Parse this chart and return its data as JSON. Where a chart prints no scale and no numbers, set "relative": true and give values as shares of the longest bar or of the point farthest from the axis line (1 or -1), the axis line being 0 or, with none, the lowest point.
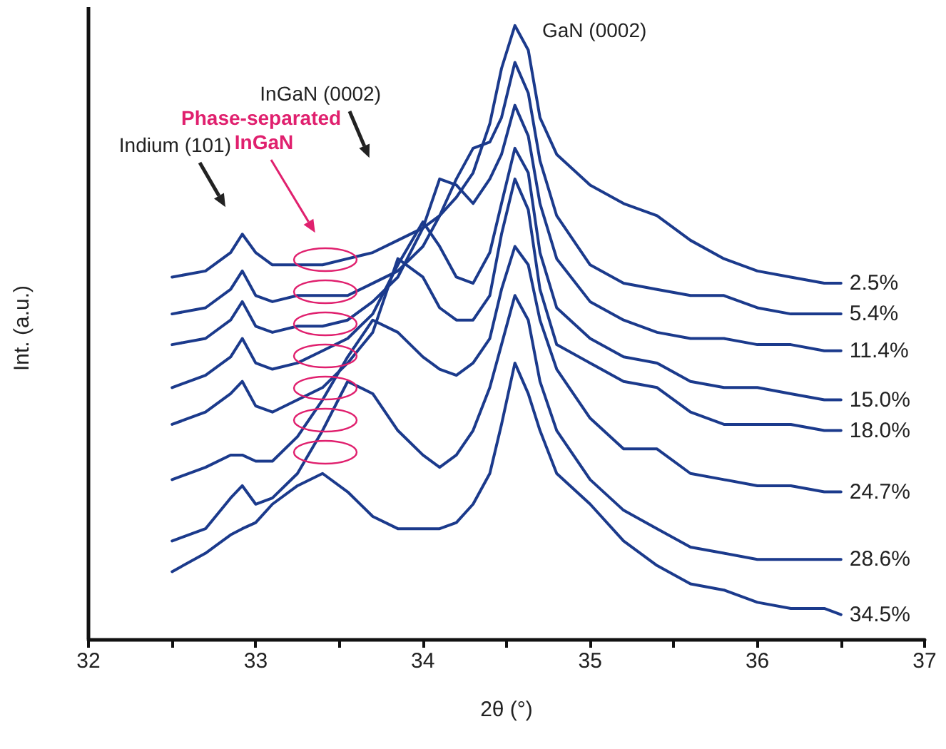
{
  "chart_data": {
    "type": "line",
    "relative": true,
    "xlabel": "2θ (°)",
    "ylabel": "Int. (a.u.)",
    "xlim": [
      32,
      37
    ],
    "xticks": [
      32,
      {
        "value": 32.5,
        "label": null
      },
      33,
      {
        "value": 33.5,
        "label": null
      },
      34,
      {
        "value": 34.5,
        "label": null
      },
      35,
      {
        "value": 35.5,
        "label": null
      },
      36,
      {
        "value": 36.5,
        "label": null
      },
      37
    ],
    "x": [
      32.5,
      32.7,
      32.85,
      32.92,
      33.0,
      33.1,
      33.25,
      33.4,
      33.55,
      33.7,
      33.85,
      34.0,
      34.1,
      34.2,
      34.3,
      34.4,
      34.47,
      34.55,
      34.63,
      34.7,
      34.8,
      35.0,
      35.2,
      35.4,
      35.6,
      35.8,
      36.0,
      36.2,
      36.4,
      36.5
    ],
    "grid": false,
    "legend": false,
    "marker": "none",
    "line_style": "solid",
    "series": [
      {
        "name": "2.5%",
        "color": "#1b3a8c",
        "values": [
          0.59,
          0.6,
          0.63,
          0.66,
          0.63,
          0.61,
          0.61,
          0.61,
          0.62,
          0.63,
          0.65,
          0.67,
          0.69,
          0.72,
          0.76,
          0.84,
          0.93,
          1,
          0.96,
          0.85,
          0.79,
          0.74,
          0.71,
          0.69,
          0.65,
          0.62,
          0.6,
          0.59,
          0.58,
          0.58
        ]
      },
      {
        "name": "5.4%",
        "color": "#1b3a8c",
        "values": [
          0.53,
          0.54,
          0.57,
          0.6,
          0.56,
          0.55,
          0.56,
          0.56,
          0.56,
          0.58,
          0.6,
          0.64,
          0.69,
          0.75,
          0.8,
          0.81,
          0.85,
          0.94,
          0.89,
          0.78,
          0.69,
          0.61,
          0.58,
          0.57,
          0.56,
          0.56,
          0.54,
          0.53,
          0.53,
          0.53
        ]
      },
      {
        "name": "11.4%",
        "color": "#1b3a8c",
        "values": [
          0.48,
          0.49,
          0.52,
          0.55,
          0.51,
          0.5,
          0.51,
          0.51,
          0.52,
          0.55,
          0.59,
          0.67,
          0.75,
          0.74,
          0.71,
          0.75,
          0.79,
          0.87,
          0.82,
          0.71,
          0.62,
          0.55,
          0.52,
          0.5,
          0.49,
          0.49,
          0.48,
          0.48,
          0.47,
          0.47
        ]
      },
      {
        "name": "15.0%",
        "color": "#1b3a8c",
        "values": [
          0.41,
          0.43,
          0.46,
          0.49,
          0.45,
          0.44,
          0.45,
          0.47,
          0.49,
          0.53,
          0.61,
          0.68,
          0.64,
          0.59,
          0.58,
          0.63,
          0.71,
          0.8,
          0.76,
          0.63,
          0.54,
          0.49,
          0.46,
          0.45,
          0.42,
          0.41,
          0.41,
          0.4,
          0.39,
          0.39
        ]
      },
      {
        "name": "18.0%",
        "color": "#1b3a8c",
        "values": [
          0.35,
          0.37,
          0.4,
          0.42,
          0.38,
          0.37,
          0.39,
          0.41,
          0.45,
          0.5,
          0.62,
          0.59,
          0.54,
          0.52,
          0.52,
          0.56,
          0.66,
          0.75,
          0.7,
          0.57,
          0.48,
          0.45,
          0.42,
          0.41,
          0.37,
          0.35,
          0.35,
          0.35,
          0.34,
          0.34
        ]
      },
      {
        "name": "24.7%",
        "color": "#1b3a8c",
        "values": [
          0.26,
          0.28,
          0.3,
          0.3,
          0.29,
          0.29,
          0.33,
          0.39,
          0.46,
          0.52,
          0.5,
          0.46,
          0.44,
          0.43,
          0.45,
          0.49,
          0.57,
          0.64,
          0.61,
          0.52,
          0.44,
          0.36,
          0.31,
          0.31,
          0.27,
          0.26,
          0.25,
          0.25,
          0.24,
          0.24
        ]
      },
      {
        "name": "28.6%",
        "color": "#1b3a8c",
        "values": [
          0.16,
          0.18,
          0.23,
          0.25,
          0.22,
          0.23,
          0.27,
          0.34,
          0.42,
          0.4,
          0.34,
          0.3,
          0.28,
          0.3,
          0.34,
          0.41,
          0.48,
          0.56,
          0.52,
          0.42,
          0.34,
          0.26,
          0.21,
          0.18,
          0.15,
          0.14,
          0.13,
          0.13,
          0.13,
          0.13
        ]
      },
      {
        "name": "34.5%",
        "color": "#1b3a8c",
        "values": [
          0.11,
          0.14,
          0.17,
          0.18,
          0.19,
          0.22,
          0.25,
          0.27,
          0.24,
          0.2,
          0.18,
          0.18,
          0.18,
          0.19,
          0.22,
          0.27,
          0.35,
          0.45,
          0.4,
          0.34,
          0.27,
          0.22,
          0.16,
          0.12,
          0.09,
          0.08,
          0.06,
          0.05,
          0.05,
          0.04
        ]
      }
    ],
    "annotations": [
      "Indium (101)",
      "Phase-separated InGaN",
      "InGaN (0002)",
      "GaN (0002)"
    ]
  }
}
